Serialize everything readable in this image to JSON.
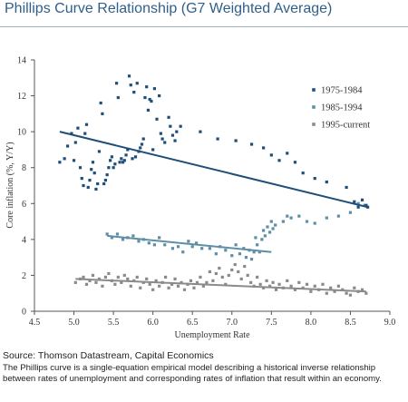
{
  "title": "Phillips Curve Relationship (G7 Weighted Average)",
  "source": "Source: Thomson Datastream, Capital Economics",
  "note": "The Phillips curve is a single-equation empirical model describing a historical inverse relationship between rates of unemployment and corresponding rates of inflation that result within an economy.",
  "chart_data": {
    "type": "scatter",
    "title": "Phillips Curve Relationship (G7 Weighted Average)",
    "xlabel": "Unemployment Rate",
    "ylabel": "Core inflation (%, Y/Y)",
    "xlim": [
      4.5,
      9.0
    ],
    "ylim": [
      0,
      14
    ],
    "x_ticks": [
      "4.5",
      "5.0",
      "5.5",
      "6.0",
      "6.5",
      "7.0",
      "7.5",
      "8.0",
      "8.5",
      "9.0"
    ],
    "y_ticks": [
      "0",
      "2",
      "4",
      "6",
      "8",
      "10",
      "12",
      "14"
    ],
    "grid": false,
    "legend_position": "top-right",
    "series": [
      {
        "name": "1975-1984",
        "color": "#1f4e79",
        "points": [
          [
            4.82,
            8.3
          ],
          [
            4.88,
            8.5
          ],
          [
            4.92,
            9.2
          ],
          [
            4.97,
            9.9
          ],
          [
            5.0,
            8.4
          ],
          [
            5.02,
            9.4
          ],
          [
            5.05,
            10.2
          ],
          [
            5.08,
            8.0
          ],
          [
            5.1,
            7.4
          ],
          [
            5.12,
            7.0
          ],
          [
            5.14,
            9.9
          ],
          [
            5.16,
            10.4
          ],
          [
            5.18,
            6.9
          ],
          [
            5.2,
            7.3
          ],
          [
            5.22,
            7.9
          ],
          [
            5.24,
            8.3
          ],
          [
            5.26,
            7.7
          ],
          [
            5.28,
            6.8
          ],
          [
            5.3,
            7.1
          ],
          [
            5.32,
            8.9
          ],
          [
            5.34,
            11.6
          ],
          [
            5.36,
            11.0
          ],
          [
            5.38,
            7.1
          ],
          [
            5.4,
            7.3
          ],
          [
            5.42,
            7.6
          ],
          [
            5.44,
            8.0
          ],
          [
            5.46,
            8.4
          ],
          [
            5.48,
            8.6
          ],
          [
            5.5,
            8.0
          ],
          [
            5.52,
            8.2
          ],
          [
            5.54,
            12.7
          ],
          [
            5.56,
            11.9
          ],
          [
            5.58,
            8.3
          ],
          [
            5.6,
            8.5
          ],
          [
            5.62,
            8.3
          ],
          [
            5.64,
            8.4
          ],
          [
            5.66,
            8.7
          ],
          [
            5.68,
            9.0
          ],
          [
            5.7,
            13.1
          ],
          [
            5.72,
            12.6
          ],
          [
            5.74,
            8.5
          ],
          [
            5.76,
            12.2
          ],
          [
            5.78,
            8.6
          ],
          [
            5.8,
            12.7
          ],
          [
            5.82,
            8.9
          ],
          [
            5.84,
            9.1
          ],
          [
            5.86,
            9.3
          ],
          [
            5.88,
            9.6
          ],
          [
            5.9,
            11.9
          ],
          [
            5.92,
            12.5
          ],
          [
            5.94,
            11.2
          ],
          [
            5.96,
            11.8
          ],
          [
            5.98,
            11.7
          ],
          [
            6.0,
            9.0
          ],
          [
            6.02,
            12.4
          ],
          [
            6.05,
            10.7
          ],
          [
            6.08,
            12.0
          ],
          [
            6.1,
            9.9
          ],
          [
            6.12,
            9.6
          ],
          [
            6.15,
            9.4
          ],
          [
            6.2,
            10.8
          ],
          [
            6.22,
            10.3
          ],
          [
            6.25,
            9.8
          ],
          [
            6.28,
            9.5
          ],
          [
            6.3,
            10.0
          ],
          [
            6.35,
            10.3
          ],
          [
            6.6,
            10.0
          ],
          [
            6.82,
            9.6
          ],
          [
            7.05,
            9.5
          ],
          [
            7.25,
            9.3
          ],
          [
            7.4,
            9.1
          ],
          [
            7.5,
            8.7
          ],
          [
            7.6,
            8.4
          ],
          [
            7.7,
            8.8
          ],
          [
            7.8,
            8.3
          ],
          [
            7.9,
            7.7
          ],
          [
            8.05,
            7.4
          ],
          [
            8.2,
            7.2
          ],
          [
            8.45,
            6.9
          ],
          [
            8.55,
            6.1
          ],
          [
            8.6,
            5.8
          ],
          [
            8.65,
            6.2
          ],
          [
            8.7,
            5.9
          ],
          [
            8.72,
            5.8
          ]
        ],
        "trend": [
          [
            4.82,
            10.0
          ],
          [
            8.72,
            5.8
          ]
        ]
      },
      {
        "name": "1985-1994",
        "color": "#5e8fa6",
        "points": [
          [
            5.42,
            4.3
          ],
          [
            5.48,
            4.1
          ],
          [
            5.55,
            4.3
          ],
          [
            5.62,
            4.0
          ],
          [
            5.68,
            4.1
          ],
          [
            5.75,
            4.2
          ],
          [
            5.82,
            3.9
          ],
          [
            5.88,
            4.0
          ],
          [
            5.95,
            3.8
          ],
          [
            6.02,
            3.7
          ],
          [
            6.08,
            4.1
          ],
          [
            6.15,
            3.7
          ],
          [
            6.25,
            3.5
          ],
          [
            6.32,
            3.6
          ],
          [
            6.38,
            3.3
          ],
          [
            6.45,
            3.9
          ],
          [
            6.5,
            3.6
          ],
          [
            6.55,
            3.8
          ],
          [
            6.62,
            3.5
          ],
          [
            6.72,
            3.5
          ],
          [
            6.8,
            3.2
          ],
          [
            6.85,
            3.6
          ],
          [
            6.92,
            3.4
          ],
          [
            7.0,
            3.1
          ],
          [
            7.05,
            3.7
          ],
          [
            7.1,
            3.2
          ],
          [
            7.15,
            3.5
          ],
          [
            7.18,
            3.0
          ],
          [
            7.22,
            3.4
          ],
          [
            7.25,
            2.9
          ],
          [
            7.28,
            3.3
          ],
          [
            7.3,
            4.1
          ],
          [
            7.32,
            3.7
          ],
          [
            7.35,
            3.3
          ],
          [
            7.38,
            4.0
          ],
          [
            7.4,
            4.5
          ],
          [
            7.42,
            4.2
          ],
          [
            7.45,
            4.7
          ],
          [
            7.48,
            4.4
          ],
          [
            7.5,
            5.0
          ],
          [
            7.52,
            4.6
          ],
          [
            7.55,
            4.8
          ],
          [
            7.65,
            5.0
          ],
          [
            7.7,
            5.3
          ],
          [
            7.75,
            5.2
          ],
          [
            7.85,
            5.3
          ],
          [
            7.95,
            5.0
          ],
          [
            8.05,
            4.9
          ],
          [
            8.2,
            5.2
          ],
          [
            8.35,
            5.3
          ],
          [
            8.5,
            5.5
          ],
          [
            8.6,
            6.0
          ],
          [
            8.68,
            5.9
          ]
        ],
        "trend": [
          [
            5.42,
            4.2
          ],
          [
            7.5,
            3.3
          ]
        ]
      },
      {
        "name": "1995-current",
        "color": "#8a8a8a",
        "points": [
          [
            5.02,
            1.6
          ],
          [
            5.08,
            1.8
          ],
          [
            5.12,
            1.9
          ],
          [
            5.16,
            1.5
          ],
          [
            5.2,
            1.7
          ],
          [
            5.24,
            2.0
          ],
          [
            5.28,
            1.6
          ],
          [
            5.32,
            1.8
          ],
          [
            5.36,
            1.4
          ],
          [
            5.4,
            1.9
          ],
          [
            5.44,
            2.1
          ],
          [
            5.48,
            1.7
          ],
          [
            5.52,
            1.5
          ],
          [
            5.56,
            1.9
          ],
          [
            5.6,
            1.6
          ],
          [
            5.64,
            2.0
          ],
          [
            5.68,
            1.8
          ],
          [
            5.72,
            1.4
          ],
          [
            5.76,
            1.7
          ],
          [
            5.8,
            1.9
          ],
          [
            5.84,
            1.3
          ],
          [
            5.88,
            1.6
          ],
          [
            5.92,
            1.8
          ],
          [
            5.96,
            1.5
          ],
          [
            6.0,
            1.2
          ],
          [
            6.04,
            1.7
          ],
          [
            6.08,
            1.4
          ],
          [
            6.12,
            1.6
          ],
          [
            6.16,
            1.9
          ],
          [
            6.2,
            1.3
          ],
          [
            6.24,
            1.5
          ],
          [
            6.28,
            1.8
          ],
          [
            6.32,
            1.4
          ],
          [
            6.36,
            1.6
          ],
          [
            6.4,
            1.2
          ],
          [
            6.44,
            1.5
          ],
          [
            6.48,
            1.7
          ],
          [
            6.52,
            1.3
          ],
          [
            6.56,
            1.6
          ],
          [
            6.6,
            1.9
          ],
          [
            6.64,
            1.4
          ],
          [
            6.68,
            1.6
          ],
          [
            6.72,
            2.2
          ],
          [
            6.76,
            1.7
          ],
          [
            6.8,
            2.1
          ],
          [
            6.84,
            2.4
          ],
          [
            6.88,
            1.9
          ],
          [
            6.92,
            1.5
          ],
          [
            6.96,
            2.0
          ],
          [
            7.0,
            2.3
          ],
          [
            7.04,
            2.6
          ],
          [
            7.08,
            2.2
          ],
          [
            7.12,
            1.8
          ],
          [
            7.16,
            2.5
          ],
          [
            7.2,
            2.0
          ],
          [
            7.24,
            1.6
          ],
          [
            7.28,
            1.4
          ],
          [
            7.32,
            1.9
          ],
          [
            7.36,
            1.5
          ],
          [
            7.4,
            1.3
          ],
          [
            7.44,
            1.7
          ],
          [
            7.48,
            1.4
          ],
          [
            7.52,
            1.6
          ],
          [
            7.56,
            1.2
          ],
          [
            7.6,
            1.5
          ],
          [
            7.65,
            1.3
          ],
          [
            7.7,
            1.7
          ],
          [
            7.75,
            1.4
          ],
          [
            7.8,
            1.2
          ],
          [
            7.85,
            1.6
          ],
          [
            7.9,
            1.3
          ],
          [
            7.95,
            1.5
          ],
          [
            8.0,
            1.1
          ],
          [
            8.05,
            1.4
          ],
          [
            8.1,
            1.2
          ],
          [
            8.15,
            1.5
          ],
          [
            8.2,
            1.0
          ],
          [
            8.25,
            1.3
          ],
          [
            8.3,
            1.1
          ],
          [
            8.35,
            1.4
          ],
          [
            8.4,
            1.2
          ],
          [
            8.45,
            1.0
          ],
          [
            8.5,
            0.9
          ],
          [
            8.55,
            1.3
          ],
          [
            8.6,
            1.1
          ],
          [
            8.65,
            1.2
          ],
          [
            8.7,
            1.0
          ]
        ],
        "trend": [
          [
            5.02,
            1.8
          ],
          [
            8.7,
            1.1
          ]
        ]
      }
    ]
  }
}
